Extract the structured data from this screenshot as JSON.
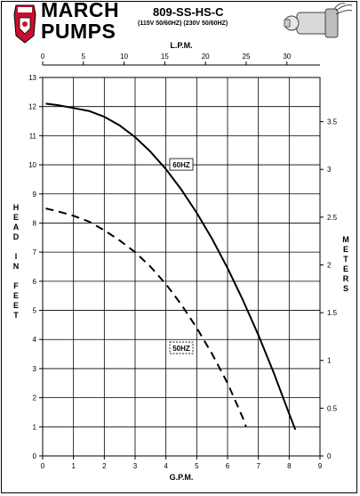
{
  "header": {
    "brand_line1": "MARCH",
    "brand_line2": "PUMPS",
    "model": "809-SS-HS-C",
    "voltage": "(115V 50/60HZ) (230V 50/60HZ)"
  },
  "chart_data": {
    "type": "line",
    "top_axis_label": "L.P.M.",
    "top_ticks": [
      "0",
      "5",
      "10",
      "15",
      "20",
      "25",
      "30"
    ],
    "xlabel": "G.P.M.",
    "x_ticks": [
      "0",
      "1",
      "2",
      "3",
      "4",
      "5",
      "6",
      "7",
      "8",
      "9"
    ],
    "xlim": [
      0,
      9
    ],
    "ylabel_letters": [
      "H",
      "E",
      "A",
      "D",
      "",
      "I",
      "N",
      "",
      "F",
      "E",
      "E",
      "T"
    ],
    "y_ticks": [
      "0",
      "1",
      "2",
      "3",
      "4",
      "5",
      "6",
      "7",
      "8",
      "9",
      "10",
      "11",
      "12",
      "13"
    ],
    "ylim": [
      0,
      13
    ],
    "right_label_letters": [
      "M",
      "E",
      "T",
      "E",
      "R",
      "S"
    ],
    "right_ticks": [
      "0",
      "0.5",
      "1",
      "1.5",
      "2",
      "2.5",
      "3",
      "3.5"
    ],
    "grid": true,
    "series": [
      {
        "name": "60HZ",
        "style": "solid",
        "x": [
          0.1,
          0.5,
          1.0,
          1.5,
          2.0,
          2.5,
          3.0,
          3.5,
          4.0,
          4.5,
          5.0,
          5.5,
          6.0,
          6.5,
          7.0,
          7.5,
          8.0,
          8.2
        ],
        "y": [
          12.1,
          12.05,
          11.95,
          11.85,
          11.65,
          11.35,
          10.95,
          10.45,
          9.85,
          9.15,
          8.35,
          7.45,
          6.45,
          5.35,
          4.15,
          2.85,
          1.45,
          0.9
        ]
      },
      {
        "name": "50HZ",
        "style": "dashed",
        "x": [
          0.1,
          0.5,
          1.0,
          1.5,
          2.0,
          2.5,
          3.0,
          3.5,
          4.0,
          4.5,
          5.0,
          5.5,
          6.0,
          6.5,
          6.6
        ],
        "y": [
          8.5,
          8.4,
          8.25,
          8.05,
          7.75,
          7.4,
          7.0,
          6.5,
          5.9,
          5.2,
          4.4,
          3.5,
          2.5,
          1.3,
          1.0
        ]
      }
    ]
  }
}
